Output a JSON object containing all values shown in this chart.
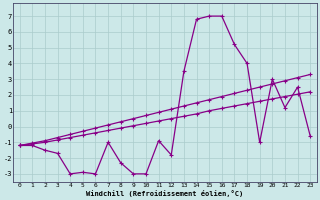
{
  "xlabel": "Windchill (Refroidissement éolien,°C)",
  "background_color": "#cce8e8",
  "line_color": "#880088",
  "grid_color": "#aacccc",
  "xlim": [
    -0.5,
    23.5
  ],
  "ylim": [
    -3.5,
    7.8
  ],
  "yticks": [
    -3,
    -2,
    -1,
    0,
    1,
    2,
    3,
    4,
    5,
    6,
    7
  ],
  "xticks": [
    0,
    1,
    2,
    3,
    4,
    5,
    6,
    7,
    8,
    9,
    10,
    11,
    12,
    13,
    14,
    15,
    16,
    17,
    18,
    19,
    20,
    21,
    22,
    23
  ],
  "y_jagged": [
    -1.2,
    -1.2,
    -1.5,
    -1.7,
    -3.0,
    -2.9,
    -3.0,
    -1.0,
    -2.3,
    -3.0,
    -3.0,
    -0.9,
    -1.8,
    3.5,
    6.8,
    7.0,
    7.0,
    5.2,
    4.0,
    -1.0,
    3.0,
    1.2,
    2.5,
    -0.6
  ],
  "y_trend1": [
    -1.2,
    -1.1,
    -1.0,
    -0.85,
    -0.7,
    -0.55,
    -0.4,
    -0.25,
    -0.1,
    0.05,
    0.2,
    0.35,
    0.5,
    0.65,
    0.8,
    1.0,
    1.15,
    1.3,
    1.45,
    1.6,
    1.75,
    1.9,
    2.05,
    2.2
  ],
  "y_trend2": [
    -1.2,
    -1.05,
    -0.9,
    -0.7,
    -0.5,
    -0.3,
    -0.1,
    0.1,
    0.3,
    0.5,
    0.7,
    0.9,
    1.1,
    1.3,
    1.5,
    1.7,
    1.9,
    2.1,
    2.3,
    2.5,
    2.7,
    2.9,
    3.1,
    3.3
  ]
}
